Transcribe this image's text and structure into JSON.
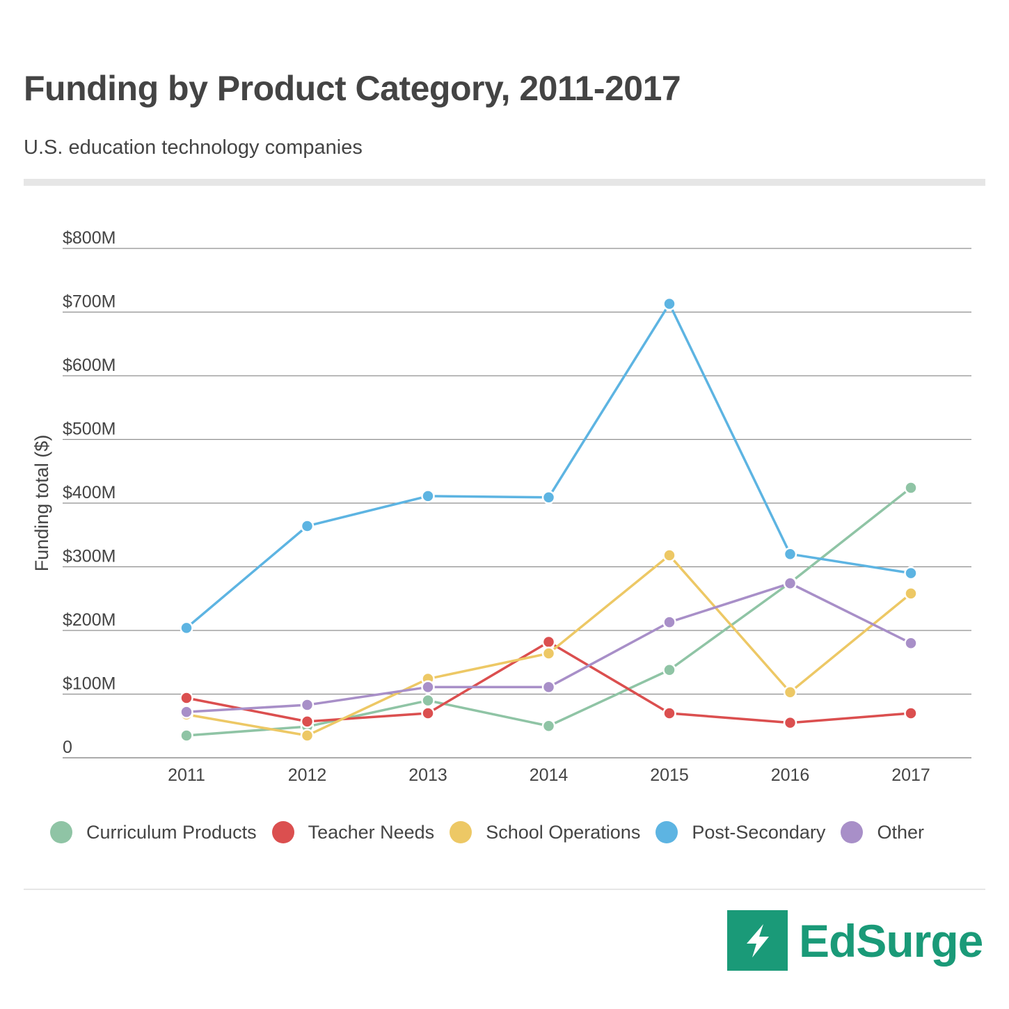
{
  "title": "Funding by Product Category, 2011-2017",
  "subtitle": "U.S. education technology companies",
  "logo": {
    "text": "EdSurge",
    "icon": "lightning-bolt-icon",
    "color": "#1a9a78"
  },
  "chart_data": {
    "type": "line",
    "title": "Funding by Product Category, 2011-2017",
    "ylabel": "Funding total ($)",
    "xlabel": "",
    "categories": [
      "2011",
      "2012",
      "2013",
      "2014",
      "2015",
      "2016",
      "2017"
    ],
    "ylim": [
      0,
      800
    ],
    "yticks": [
      0,
      100,
      200,
      300,
      400,
      500,
      600,
      700,
      800
    ],
    "ytick_labels": [
      "0",
      "$100M",
      "$200M",
      "$300M",
      "$400M",
      "$500M",
      "$600M",
      "$700M",
      "$800M"
    ],
    "grid": true,
    "legend_position": "bottom",
    "series": [
      {
        "name": "Curriculum Products",
        "color": "#8fc4a5",
        "values": [
          35,
          49,
          90,
          50,
          138,
          275,
          424
        ]
      },
      {
        "name": "Teacher Needs",
        "color": "#db4f4f",
        "values": [
          94,
          57,
          70,
          182,
          70,
          55,
          70
        ]
      },
      {
        "name": "School Operations",
        "color": "#edc865",
        "values": [
          68,
          35,
          124,
          164,
          318,
          103,
          258
        ]
      },
      {
        "name": "Post-Secondary",
        "color": "#5db4e2",
        "values": [
          204,
          364,
          411,
          409,
          713,
          320,
          290
        ]
      },
      {
        "name": "Other",
        "color": "#a88fc8",
        "values": [
          72,
          83,
          111,
          111,
          213,
          274,
          180
        ]
      }
    ]
  }
}
